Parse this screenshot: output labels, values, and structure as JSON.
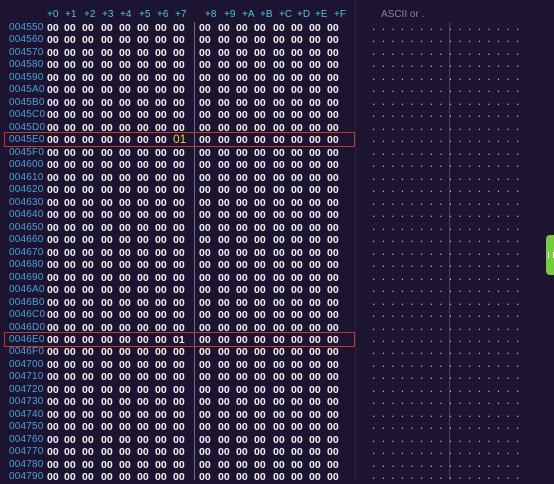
{
  "columns": [
    "+0",
    "+1",
    "+2",
    "+3",
    "+4",
    "+5",
    "+6",
    "+7",
    "+8",
    "+9",
    "+A",
    "+B",
    "+C",
    "+D",
    "+E",
    "+F"
  ],
  "ascii_header": "ASCII or .",
  "rows": [
    {
      "addr": "004550",
      "bytes": [
        "00",
        "00",
        "00",
        "00",
        "00",
        "00",
        "00",
        "00",
        "00",
        "00",
        "00",
        "00",
        "00",
        "00",
        "00",
        "00"
      ]
    },
    {
      "addr": "004560",
      "bytes": [
        "00",
        "00",
        "00",
        "00",
        "00",
        "00",
        "00",
        "00",
        "00",
        "00",
        "00",
        "00",
        "00",
        "00",
        "00",
        "00"
      ]
    },
    {
      "addr": "004570",
      "bytes": [
        "00",
        "00",
        "00",
        "00",
        "00",
        "00",
        "00",
        "00",
        "00",
        "00",
        "00",
        "00",
        "00",
        "00",
        "00",
        "00"
      ]
    },
    {
      "addr": "004580",
      "bytes": [
        "00",
        "00",
        "00",
        "00",
        "00",
        "00",
        "00",
        "00",
        "00",
        "00",
        "00",
        "00",
        "00",
        "00",
        "00",
        "00"
      ]
    },
    {
      "addr": "004590",
      "bytes": [
        "00",
        "00",
        "00",
        "00",
        "00",
        "00",
        "00",
        "00",
        "00",
        "00",
        "00",
        "00",
        "00",
        "00",
        "00",
        "00"
      ]
    },
    {
      "addr": "0045A0",
      "bytes": [
        "00",
        "00",
        "00",
        "00",
        "00",
        "00",
        "00",
        "00",
        "00",
        "00",
        "00",
        "00",
        "00",
        "00",
        "00",
        "00"
      ]
    },
    {
      "addr": "0045B0",
      "bytes": [
        "00",
        "00",
        "00",
        "00",
        "00",
        "00",
        "00",
        "00",
        "00",
        "00",
        "00",
        "00",
        "00",
        "00",
        "00",
        "00"
      ]
    },
    {
      "addr": "0045C0",
      "bytes": [
        "00",
        "00",
        "00",
        "00",
        "00",
        "00",
        "00",
        "00",
        "00",
        "00",
        "00",
        "00",
        "00",
        "00",
        "00",
        "00"
      ]
    },
    {
      "addr": "0045D0",
      "bytes": [
        "00",
        "00",
        "00",
        "00",
        "00",
        "00",
        "00",
        "00",
        "00",
        "00",
        "00",
        "00",
        "00",
        "00",
        "00",
        "00"
      ]
    },
    {
      "addr": "0045E0",
      "bytes": [
        "00",
        "00",
        "00",
        "00",
        "00",
        "00",
        "00",
        "01",
        "00",
        "00",
        "00",
        "00",
        "00",
        "00",
        "00",
        "00"
      ]
    },
    {
      "addr": "0045F0",
      "bytes": [
        "00",
        "00",
        "00",
        "00",
        "00",
        "00",
        "00",
        "00",
        "00",
        "00",
        "00",
        "00",
        "00",
        "00",
        "00",
        "00"
      ]
    },
    {
      "addr": "004600",
      "bytes": [
        "00",
        "00",
        "00",
        "00",
        "00",
        "00",
        "00",
        "00",
        "00",
        "00",
        "00",
        "00",
        "00",
        "00",
        "00",
        "00"
      ]
    },
    {
      "addr": "004610",
      "bytes": [
        "00",
        "00",
        "00",
        "00",
        "00",
        "00",
        "00",
        "00",
        "00",
        "00",
        "00",
        "00",
        "00",
        "00",
        "00",
        "00"
      ]
    },
    {
      "addr": "004620",
      "bytes": [
        "00",
        "00",
        "00",
        "00",
        "00",
        "00",
        "00",
        "00",
        "00",
        "00",
        "00",
        "00",
        "00",
        "00",
        "00",
        "00"
      ]
    },
    {
      "addr": "004630",
      "bytes": [
        "00",
        "00",
        "00",
        "00",
        "00",
        "00",
        "00",
        "00",
        "00",
        "00",
        "00",
        "00",
        "00",
        "00",
        "00",
        "00"
      ]
    },
    {
      "addr": "004640",
      "bytes": [
        "00",
        "00",
        "00",
        "00",
        "00",
        "00",
        "00",
        "00",
        "00",
        "00",
        "00",
        "00",
        "00",
        "00",
        "00",
        "00"
      ]
    },
    {
      "addr": "004650",
      "bytes": [
        "00",
        "00",
        "00",
        "00",
        "00",
        "00",
        "00",
        "00",
        "00",
        "00",
        "00",
        "00",
        "00",
        "00",
        "00",
        "00"
      ]
    },
    {
      "addr": "004660",
      "bytes": [
        "00",
        "00",
        "00",
        "00",
        "00",
        "00",
        "00",
        "00",
        "00",
        "00",
        "00",
        "00",
        "00",
        "00",
        "00",
        "00"
      ]
    },
    {
      "addr": "004670",
      "bytes": [
        "00",
        "00",
        "00",
        "00",
        "00",
        "00",
        "00",
        "00",
        "00",
        "00",
        "00",
        "00",
        "00",
        "00",
        "00",
        "00"
      ]
    },
    {
      "addr": "004680",
      "bytes": [
        "00",
        "00",
        "00",
        "00",
        "00",
        "00",
        "00",
        "00",
        "00",
        "00",
        "00",
        "00",
        "00",
        "00",
        "00",
        "00"
      ]
    },
    {
      "addr": "004690",
      "bytes": [
        "00",
        "00",
        "00",
        "00",
        "00",
        "00",
        "00",
        "00",
        "00",
        "00",
        "00",
        "00",
        "00",
        "00",
        "00",
        "00"
      ]
    },
    {
      "addr": "0046A0",
      "bytes": [
        "00",
        "00",
        "00",
        "00",
        "00",
        "00",
        "00",
        "00",
        "00",
        "00",
        "00",
        "00",
        "00",
        "00",
        "00",
        "00"
      ]
    },
    {
      "addr": "0046B0",
      "bytes": [
        "00",
        "00",
        "00",
        "00",
        "00",
        "00",
        "00",
        "00",
        "00",
        "00",
        "00",
        "00",
        "00",
        "00",
        "00",
        "00"
      ]
    },
    {
      "addr": "0046C0",
      "bytes": [
        "00",
        "00",
        "00",
        "00",
        "00",
        "00",
        "00",
        "00",
        "00",
        "00",
        "00",
        "00",
        "00",
        "00",
        "00",
        "00"
      ]
    },
    {
      "addr": "0046D0",
      "bytes": [
        "00",
        "00",
        "00",
        "00",
        "00",
        "00",
        "00",
        "00",
        "00",
        "00",
        "00",
        "00",
        "00",
        "00",
        "00",
        "00"
      ]
    },
    {
      "addr": "0046E0",
      "bytes": [
        "00",
        "00",
        "00",
        "00",
        "00",
        "00",
        "00",
        "01",
        "00",
        "00",
        "00",
        "00",
        "00",
        "00",
        "00",
        "00"
      ]
    },
    {
      "addr": "0046F0",
      "bytes": [
        "00",
        "00",
        "00",
        "00",
        "00",
        "00",
        "00",
        "00",
        "00",
        "00",
        "00",
        "00",
        "00",
        "00",
        "00",
        "00"
      ]
    },
    {
      "addr": "004700",
      "bytes": [
        "00",
        "00",
        "00",
        "00",
        "00",
        "00",
        "00",
        "00",
        "00",
        "00",
        "00",
        "00",
        "00",
        "00",
        "00",
        "00"
      ]
    },
    {
      "addr": "004710",
      "bytes": [
        "00",
        "00",
        "00",
        "00",
        "00",
        "00",
        "00",
        "00",
        "00",
        "00",
        "00",
        "00",
        "00",
        "00",
        "00",
        "00"
      ]
    },
    {
      "addr": "004720",
      "bytes": [
        "00",
        "00",
        "00",
        "00",
        "00",
        "00",
        "00",
        "00",
        "00",
        "00",
        "00",
        "00",
        "00",
        "00",
        "00",
        "00"
      ]
    },
    {
      "addr": "004730",
      "bytes": [
        "00",
        "00",
        "00",
        "00",
        "00",
        "00",
        "00",
        "00",
        "00",
        "00",
        "00",
        "00",
        "00",
        "00",
        "00",
        "00"
      ]
    },
    {
      "addr": "004740",
      "bytes": [
        "00",
        "00",
        "00",
        "00",
        "00",
        "00",
        "00",
        "00",
        "00",
        "00",
        "00",
        "00",
        "00",
        "00",
        "00",
        "00"
      ]
    },
    {
      "addr": "004750",
      "bytes": [
        "00",
        "00",
        "00",
        "00",
        "00",
        "00",
        "00",
        "00",
        "00",
        "00",
        "00",
        "00",
        "00",
        "00",
        "00",
        "00"
      ]
    },
    {
      "addr": "004760",
      "bytes": [
        "00",
        "00",
        "00",
        "00",
        "00",
        "00",
        "00",
        "00",
        "00",
        "00",
        "00",
        "00",
        "00",
        "00",
        "00",
        "00"
      ]
    },
    {
      "addr": "004770",
      "bytes": [
        "00",
        "00",
        "00",
        "00",
        "00",
        "00",
        "00",
        "00",
        "00",
        "00",
        "00",
        "00",
        "00",
        "00",
        "00",
        "00"
      ]
    },
    {
      "addr": "004780",
      "bytes": [
        "00",
        "00",
        "00",
        "00",
        "00",
        "00",
        "00",
        "00",
        "00",
        "00",
        "00",
        "00",
        "00",
        "00",
        "00",
        "00"
      ]
    },
    {
      "addr": "004790",
      "bytes": [
        "00",
        "00",
        "00",
        "00",
        "00",
        "00",
        "00",
        "00",
        "00",
        "00",
        "00",
        "00",
        "00",
        "00",
        "00",
        "00"
      ]
    }
  ],
  "highlighted_rows": [
    "0045E0",
    "0046E0"
  ],
  "highlight_value_byte": {
    "row": "0045E0",
    "col": "+7"
  },
  "colors": {
    "background": "#1c1430",
    "header": "#4fc3d6",
    "address": "#4aa0d8",
    "byte": "#f2f2f2",
    "highlight_box": "#c0392b",
    "highlight_byte": "#e6c84a",
    "side_tab": "#7ac943"
  },
  "icons": {
    "side_tab": "drag-handle-icon"
  }
}
